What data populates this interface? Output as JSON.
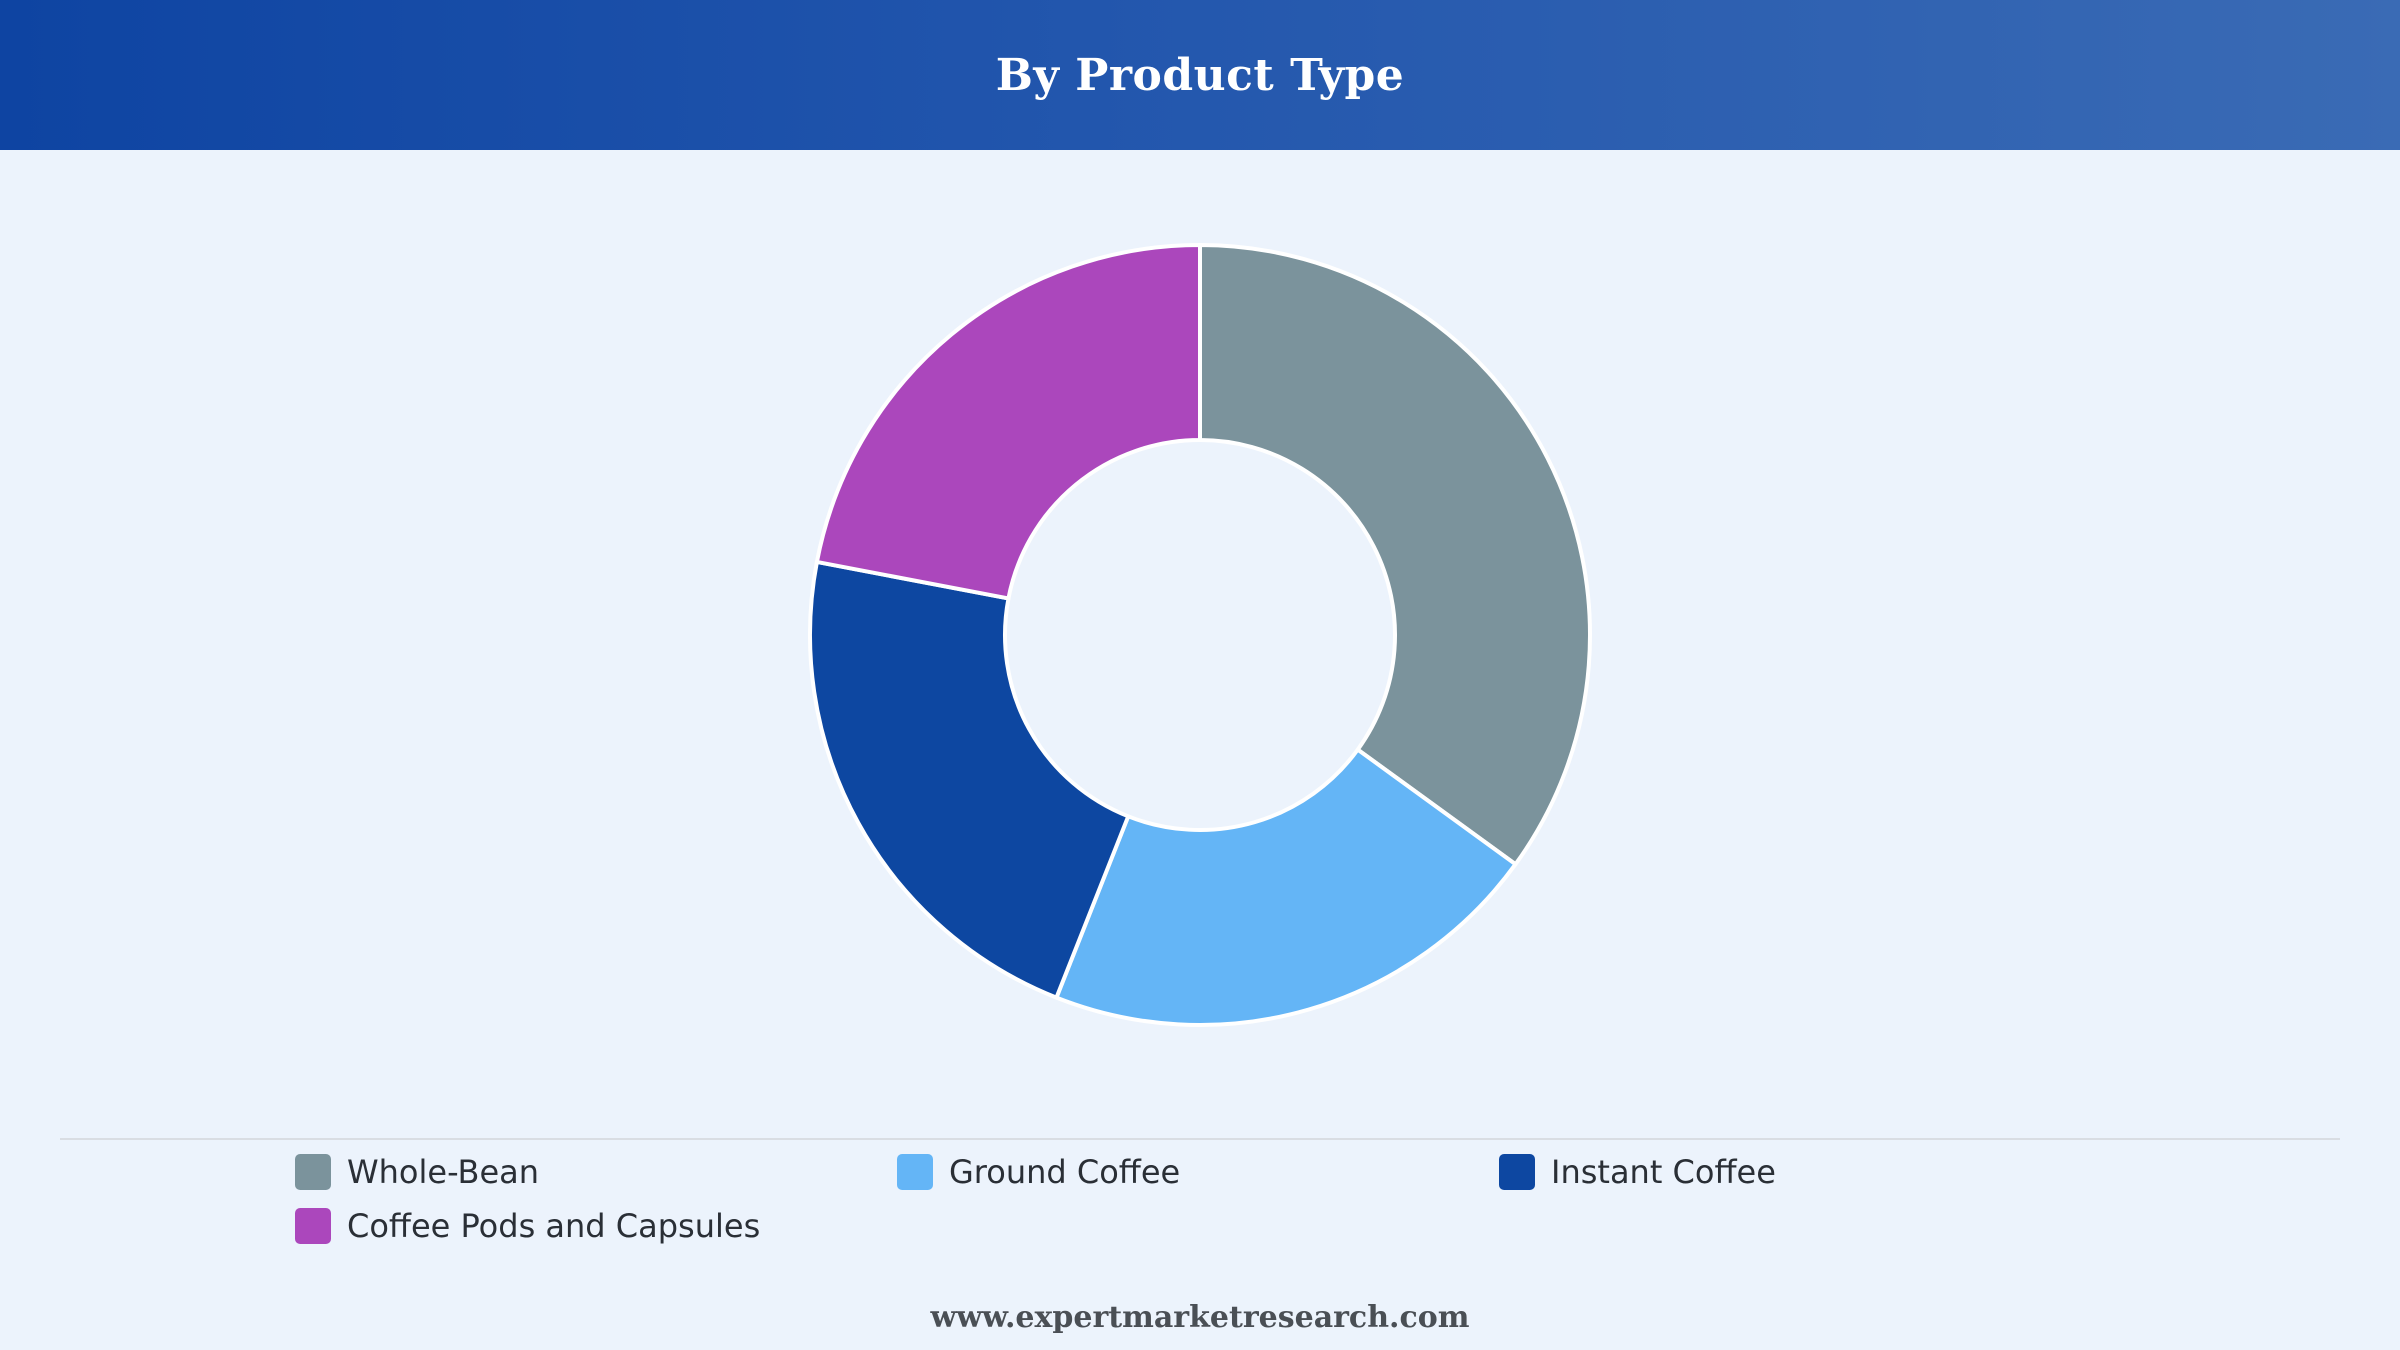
{
  "header": {
    "title": "By Product Type"
  },
  "chart_data": {
    "type": "pie",
    "title": "By Product Type",
    "categories": [
      "Whole-Bean",
      "Ground Coffee",
      "Instant Coffee",
      "Coffee Pods and Capsules"
    ],
    "values": [
      35,
      21,
      22,
      22
    ],
    "colors": [
      "#7b939c",
      "#64b5f6",
      "#0d47a1",
      "#ab47bc"
    ],
    "donut": true,
    "legend_position": "bottom"
  },
  "footer": {
    "source": "www.expertmarketresearch.com"
  }
}
